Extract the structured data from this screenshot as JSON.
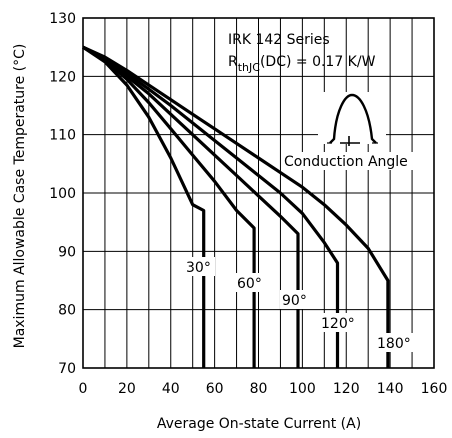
{
  "chart_data": {
    "type": "line",
    "title": "",
    "xlabel": "Average On-state Current (A)",
    "ylabel": "Maximum Allowable Case Temperature (°C)",
    "xlim": [
      0,
      160
    ],
    "ylim": [
      70,
      130
    ],
    "xticks": [
      "0",
      "20",
      "40",
      "60",
      "80",
      "100",
      "120",
      "140",
      "160"
    ],
    "yticks": [
      "70",
      "80",
      "90",
      "100",
      "110",
      "120",
      "130"
    ],
    "grid": true,
    "annotation": {
      "series_line": "IRK 142  Series",
      "rth_main": "R",
      "rth_sub": "thJC",
      "rth_rest": "(DC) = 0.17 K/W",
      "waveform_label": "Conduction Angle"
    },
    "series": [
      {
        "name": "30°",
        "x": [
          0,
          10,
          20,
          30,
          40,
          50,
          55,
          55
        ],
        "y": [
          125,
          122.5,
          118.5,
          113,
          106,
          98,
          97,
          70
        ]
      },
      {
        "name": "60°",
        "x": [
          0,
          10,
          20,
          30,
          40,
          50,
          60,
          70,
          78,
          78
        ],
        "y": [
          125,
          122.8,
          119.5,
          115.5,
          111,
          106.5,
          102,
          97,
          94,
          70
        ]
      },
      {
        "name": "90°",
        "x": [
          0,
          10,
          20,
          30,
          40,
          50,
          60,
          70,
          80,
          90,
          98,
          98
        ],
        "y": [
          125,
          123,
          120,
          117,
          113.5,
          110,
          106.5,
          103,
          99.5,
          96,
          93,
          70
        ]
      },
      {
        "name": "120°",
        "x": [
          0,
          10,
          20,
          30,
          40,
          50,
          60,
          70,
          80,
          90,
          100,
          110,
          116,
          116
        ],
        "y": [
          125,
          123.2,
          120.5,
          117.8,
          115,
          112,
          109,
          106,
          103,
          100,
          96.5,
          91.5,
          88,
          70
        ]
      },
      {
        "name": "180°",
        "x": [
          0,
          10,
          20,
          30,
          40,
          50,
          60,
          70,
          80,
          90,
          100,
          110,
          120,
          130,
          139,
          139
        ],
        "y": [
          125,
          123.3,
          121,
          118.5,
          116,
          113.5,
          111,
          108.5,
          106,
          103.5,
          101,
          98,
          94.5,
          90.5,
          85,
          70
        ]
      }
    ],
    "legend": "inline-labels"
  }
}
